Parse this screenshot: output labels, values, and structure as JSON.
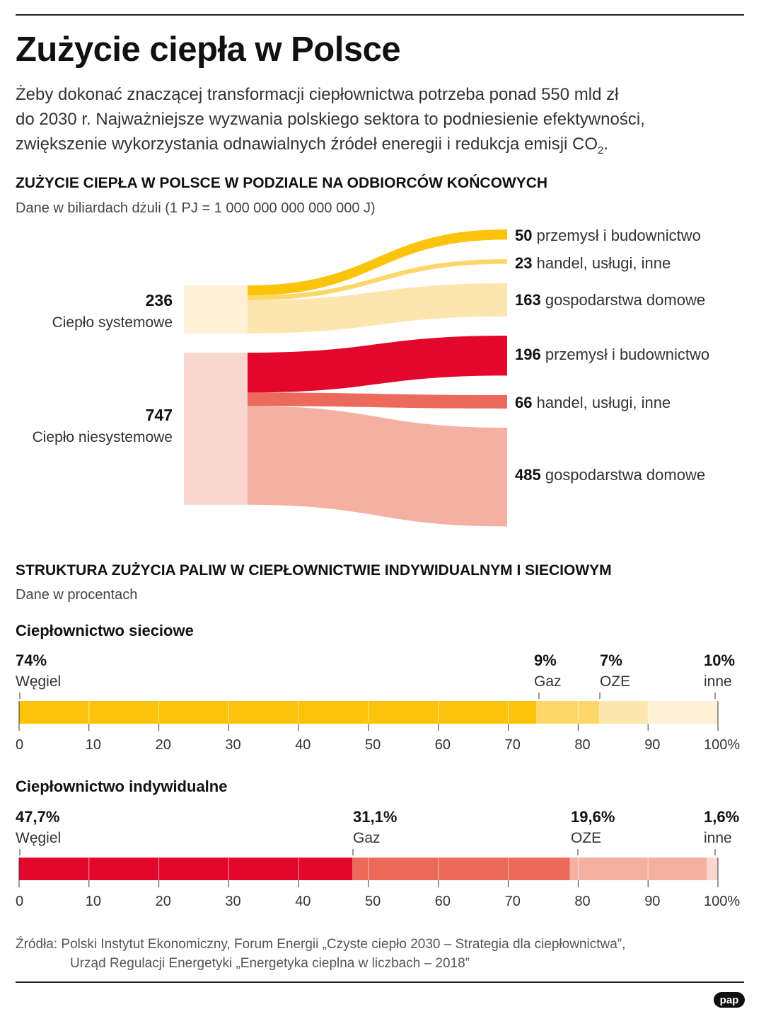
{
  "title": "Zużycie ciepła w Polsce",
  "intro": {
    "line1": "Żeby dokonać znaczącej transformacji ciepłownictwa potrzeba ponad 550 mld zł",
    "line2": "do 2030 r. Najważniejsze wyzwania polskiego sektora to podniesienie efektywności,",
    "line3": "zwiększenie wykorzystania odnawialnych źródeł eneregii i redukcja emisji CO",
    "line3_sub": "2",
    "line3_end": "."
  },
  "source": {
    "line1": "Źródła: Polski Instytut Ekonomiczny, Forum Energii „Czyste ciepło 2030 – Strategia dla ciepłownictwa”,",
    "line2": "Urząd Regulacji Energetyki „Energetyka cieplna w liczbach – 2018”"
  },
  "logo": "pap",
  "chart_data": [
    {
      "type": "sankey",
      "title": "ZUŻYCIE CIEPŁA W POLSCE W PODZIALE NA ODBIORCÓW KOŃCOWYCH",
      "subtitle": "Dane w biliardach dżuli (1 PJ = 1 000 000 000 000 000 J)",
      "sources": [
        {
          "name": "Ciepło systemowe",
          "value": 236,
          "color": "#FEF1D6",
          "flows": [
            {
              "target": "przemysł i budownictwo",
              "value": 50,
              "color": "#FCC30B"
            },
            {
              "target": "handel, usługi, inne",
              "value": 23,
              "color": "#FDD76A"
            },
            {
              "target": "gospodarstwa domowe",
              "value": 163,
              "color": "#FDE6AE"
            }
          ]
        },
        {
          "name": "Ciepło niesystemowe",
          "value": 747,
          "color": "#F9D7CF",
          "flows": [
            {
              "target": "przemysł i budownictwo",
              "value": 196,
              "color": "#E3072B"
            },
            {
              "target": "handel, usługi, inne",
              "value": 66,
              "color": "#EC6A5C"
            },
            {
              "target": "gospodarstwa domowe",
              "value": 485,
              "color": "#F4B0A0"
            }
          ]
        }
      ]
    },
    {
      "type": "stacked-bar",
      "title": "STRUKTURA ZUŻYCIA PALIW W CIEPŁOWNICTWIE INDYWIDUALNYM I SIECIOWYM",
      "subtitle": "Dane w procentach",
      "xlim": [
        0,
        100
      ],
      "ticks": [
        "0",
        "10",
        "20",
        "30",
        "40",
        "50",
        "60",
        "70",
        "80",
        "90",
        "100%"
      ],
      "bars": [
        {
          "name": "Ciepłownictwo sieciowe",
          "segments": [
            {
              "label": "Węgiel",
              "value": 74,
              "text": "74%",
              "color": "#FCC30B"
            },
            {
              "label": "Gaz",
              "value": 9,
              "text": "9%",
              "color": "#FDD76A"
            },
            {
              "label": "OZE",
              "value": 7,
              "text": "7%",
              "color": "#FDE6AE"
            },
            {
              "label": "inne",
              "value": 10,
              "text": "10%",
              "color": "#FEF1D6"
            }
          ]
        },
        {
          "name": "Ciepłownictwo indywidualne",
          "segments": [
            {
              "label": "Węgiel",
              "value": 47.7,
              "text": "47,7%",
              "color": "#E3072B"
            },
            {
              "label": "Gaz",
              "value": 31.1,
              "text": "31,1%",
              "color": "#EC6A5C"
            },
            {
              "label": "OZE",
              "value": 19.6,
              "text": "19,6%",
              "color": "#F4B0A0"
            },
            {
              "label": "inne",
              "value": 1.6,
              "text": "1,6%",
              "color": "#F9D7CF"
            }
          ]
        }
      ]
    }
  ]
}
